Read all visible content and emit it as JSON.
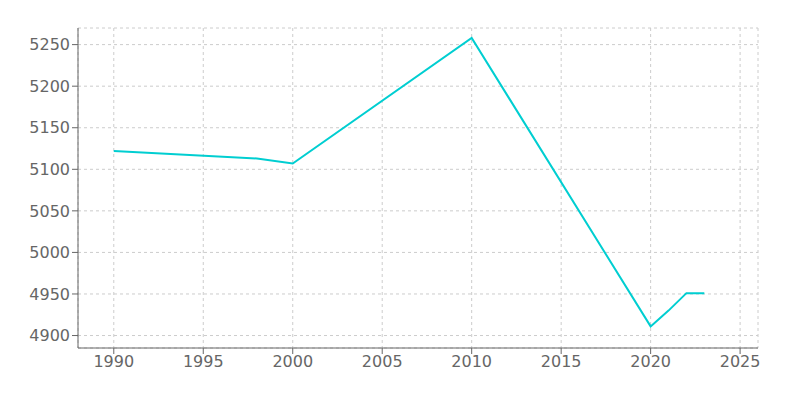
{
  "chart_data": {
    "type": "line",
    "x": [
      1990,
      1998,
      2000,
      2010,
      2020,
      2021,
      2022,
      2023
    ],
    "values": [
      5122,
      5113,
      5107,
      5258,
      4911,
      4930,
      4951,
      4951
    ],
    "color": "#00CED1",
    "xlim": [
      1988,
      2026
    ],
    "ylim": [
      4885,
      5270
    ],
    "xticks": [
      1990,
      1995,
      2000,
      2005,
      2010,
      2015,
      2020,
      2025
    ],
    "yticks": [
      4900,
      4950,
      5000,
      5050,
      5100,
      5150,
      5200,
      5250
    ],
    "grid": true
  }
}
